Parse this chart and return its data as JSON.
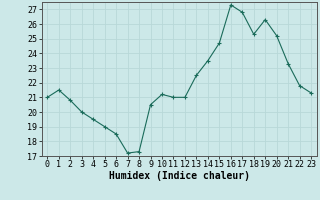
{
  "x": [
    0,
    1,
    2,
    3,
    4,
    5,
    6,
    7,
    8,
    9,
    10,
    11,
    12,
    13,
    14,
    15,
    16,
    17,
    18,
    19,
    20,
    21,
    22,
    23
  ],
  "y": [
    21.0,
    21.5,
    20.8,
    20.0,
    19.5,
    19.0,
    18.5,
    17.2,
    17.3,
    20.5,
    21.2,
    21.0,
    21.0,
    22.5,
    23.5,
    24.7,
    27.3,
    26.8,
    25.3,
    26.3,
    25.2,
    23.3,
    21.8,
    21.3
  ],
  "xlabel": "Humidex (Indice chaleur)",
  "xlim": [
    -0.5,
    23.5
  ],
  "ylim": [
    17,
    27.5
  ],
  "yticks": [
    17,
    18,
    19,
    20,
    21,
    22,
    23,
    24,
    25,
    26,
    27
  ],
  "xticks": [
    0,
    1,
    2,
    3,
    4,
    5,
    6,
    7,
    8,
    9,
    10,
    11,
    12,
    13,
    14,
    15,
    16,
    17,
    18,
    19,
    20,
    21,
    22,
    23
  ],
  "line_color": "#1a6b5a",
  "marker_color": "#1a6b5a",
  "bg_color": "#cce8e8",
  "grid_color": "#b8d8d8",
  "xlabel_fontsize": 7,
  "tick_fontsize": 6
}
